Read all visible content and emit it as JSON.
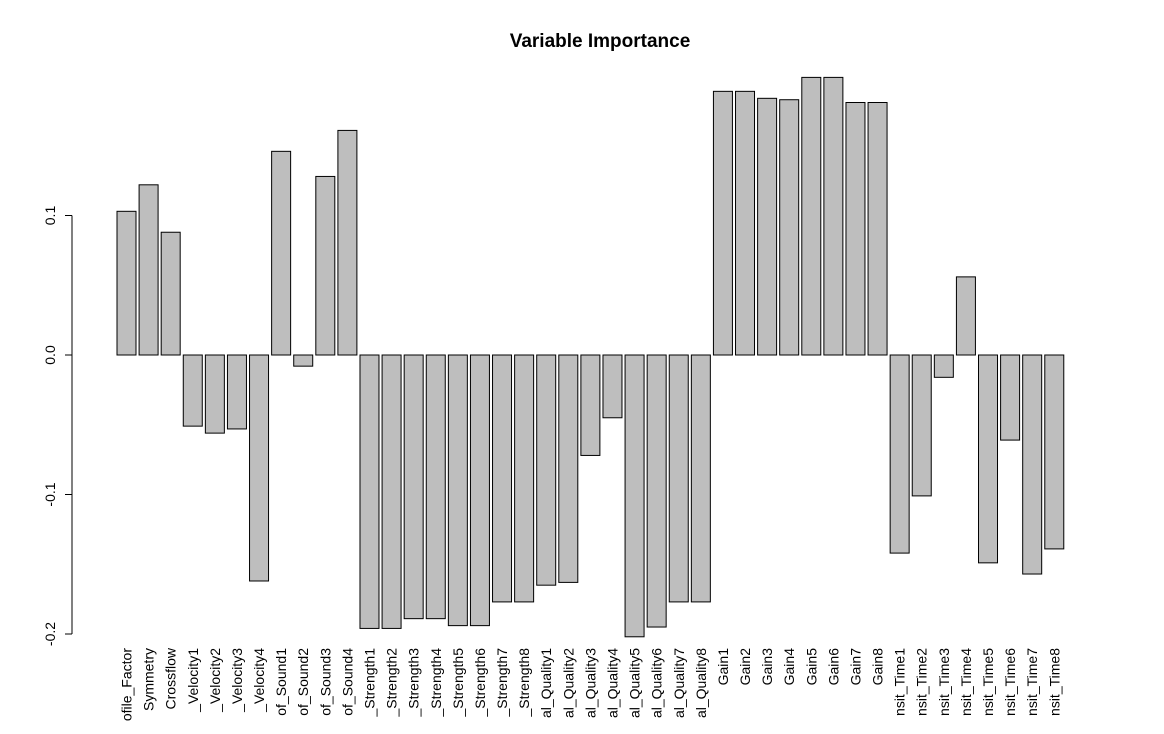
{
  "chart_data": {
    "type": "bar",
    "title": "Variable Importance",
    "xlabel": "",
    "ylabel": "",
    "ylim": [
      -0.2,
      0.2
    ],
    "yticks": [
      {
        "value": -0.2,
        "label": "-0.2"
      },
      {
        "value": -0.1,
        "label": "-0.1"
      },
      {
        "value": 0.0,
        "label": "0.0"
      },
      {
        "value": 0.1,
        "label": "0.1"
      }
    ],
    "grid": false,
    "legend": "none",
    "bar_color": "#bebebe",
    "bar_stroke": "#000000",
    "categories": [
      "ofile_Factor",
      "Symmetry",
      "Crossflow",
      "_Velocity1",
      "_Velocity2",
      "_Velocity3",
      "_Velocity4",
      "of_Sound1",
      "of_Sound2",
      "of_Sound3",
      "of_Sound4",
      "_Strength1",
      "_Strength2",
      "_Strength3",
      "_Strength4",
      "_Strength5",
      "_Strength6",
      "_Strength7",
      "_Strength8",
      "al_Quality1",
      "al_Quality2",
      "al_Quality3",
      "al_Quality4",
      "al_Quality5",
      "al_Quality6",
      "al_Quality7",
      "al_Quality8",
      "Gain1",
      "Gain2",
      "Gain3",
      "Gain4",
      "Gain5",
      "Gain6",
      "Gain7",
      "Gain8",
      "nsit_Time1",
      "nsit_Time2",
      "nsit_Time3",
      "nsit_Time4",
      "nsit_Time5",
      "nsit_Time6",
      "nsit_Time7",
      "nsit_Time8"
    ],
    "values": [
      0.103,
      0.122,
      0.088,
      -0.051,
      -0.056,
      -0.053,
      -0.162,
      0.146,
      -0.008,
      0.128,
      0.161,
      -0.196,
      -0.196,
      -0.189,
      -0.189,
      -0.194,
      -0.194,
      -0.177,
      -0.177,
      -0.165,
      -0.163,
      -0.072,
      -0.045,
      -0.202,
      -0.195,
      -0.177,
      -0.177,
      0.189,
      0.189,
      0.184,
      0.183,
      0.199,
      0.199,
      0.181,
      0.181,
      -0.142,
      -0.101,
      -0.016,
      0.056,
      -0.149,
      -0.061,
      -0.157,
      -0.139
    ]
  }
}
